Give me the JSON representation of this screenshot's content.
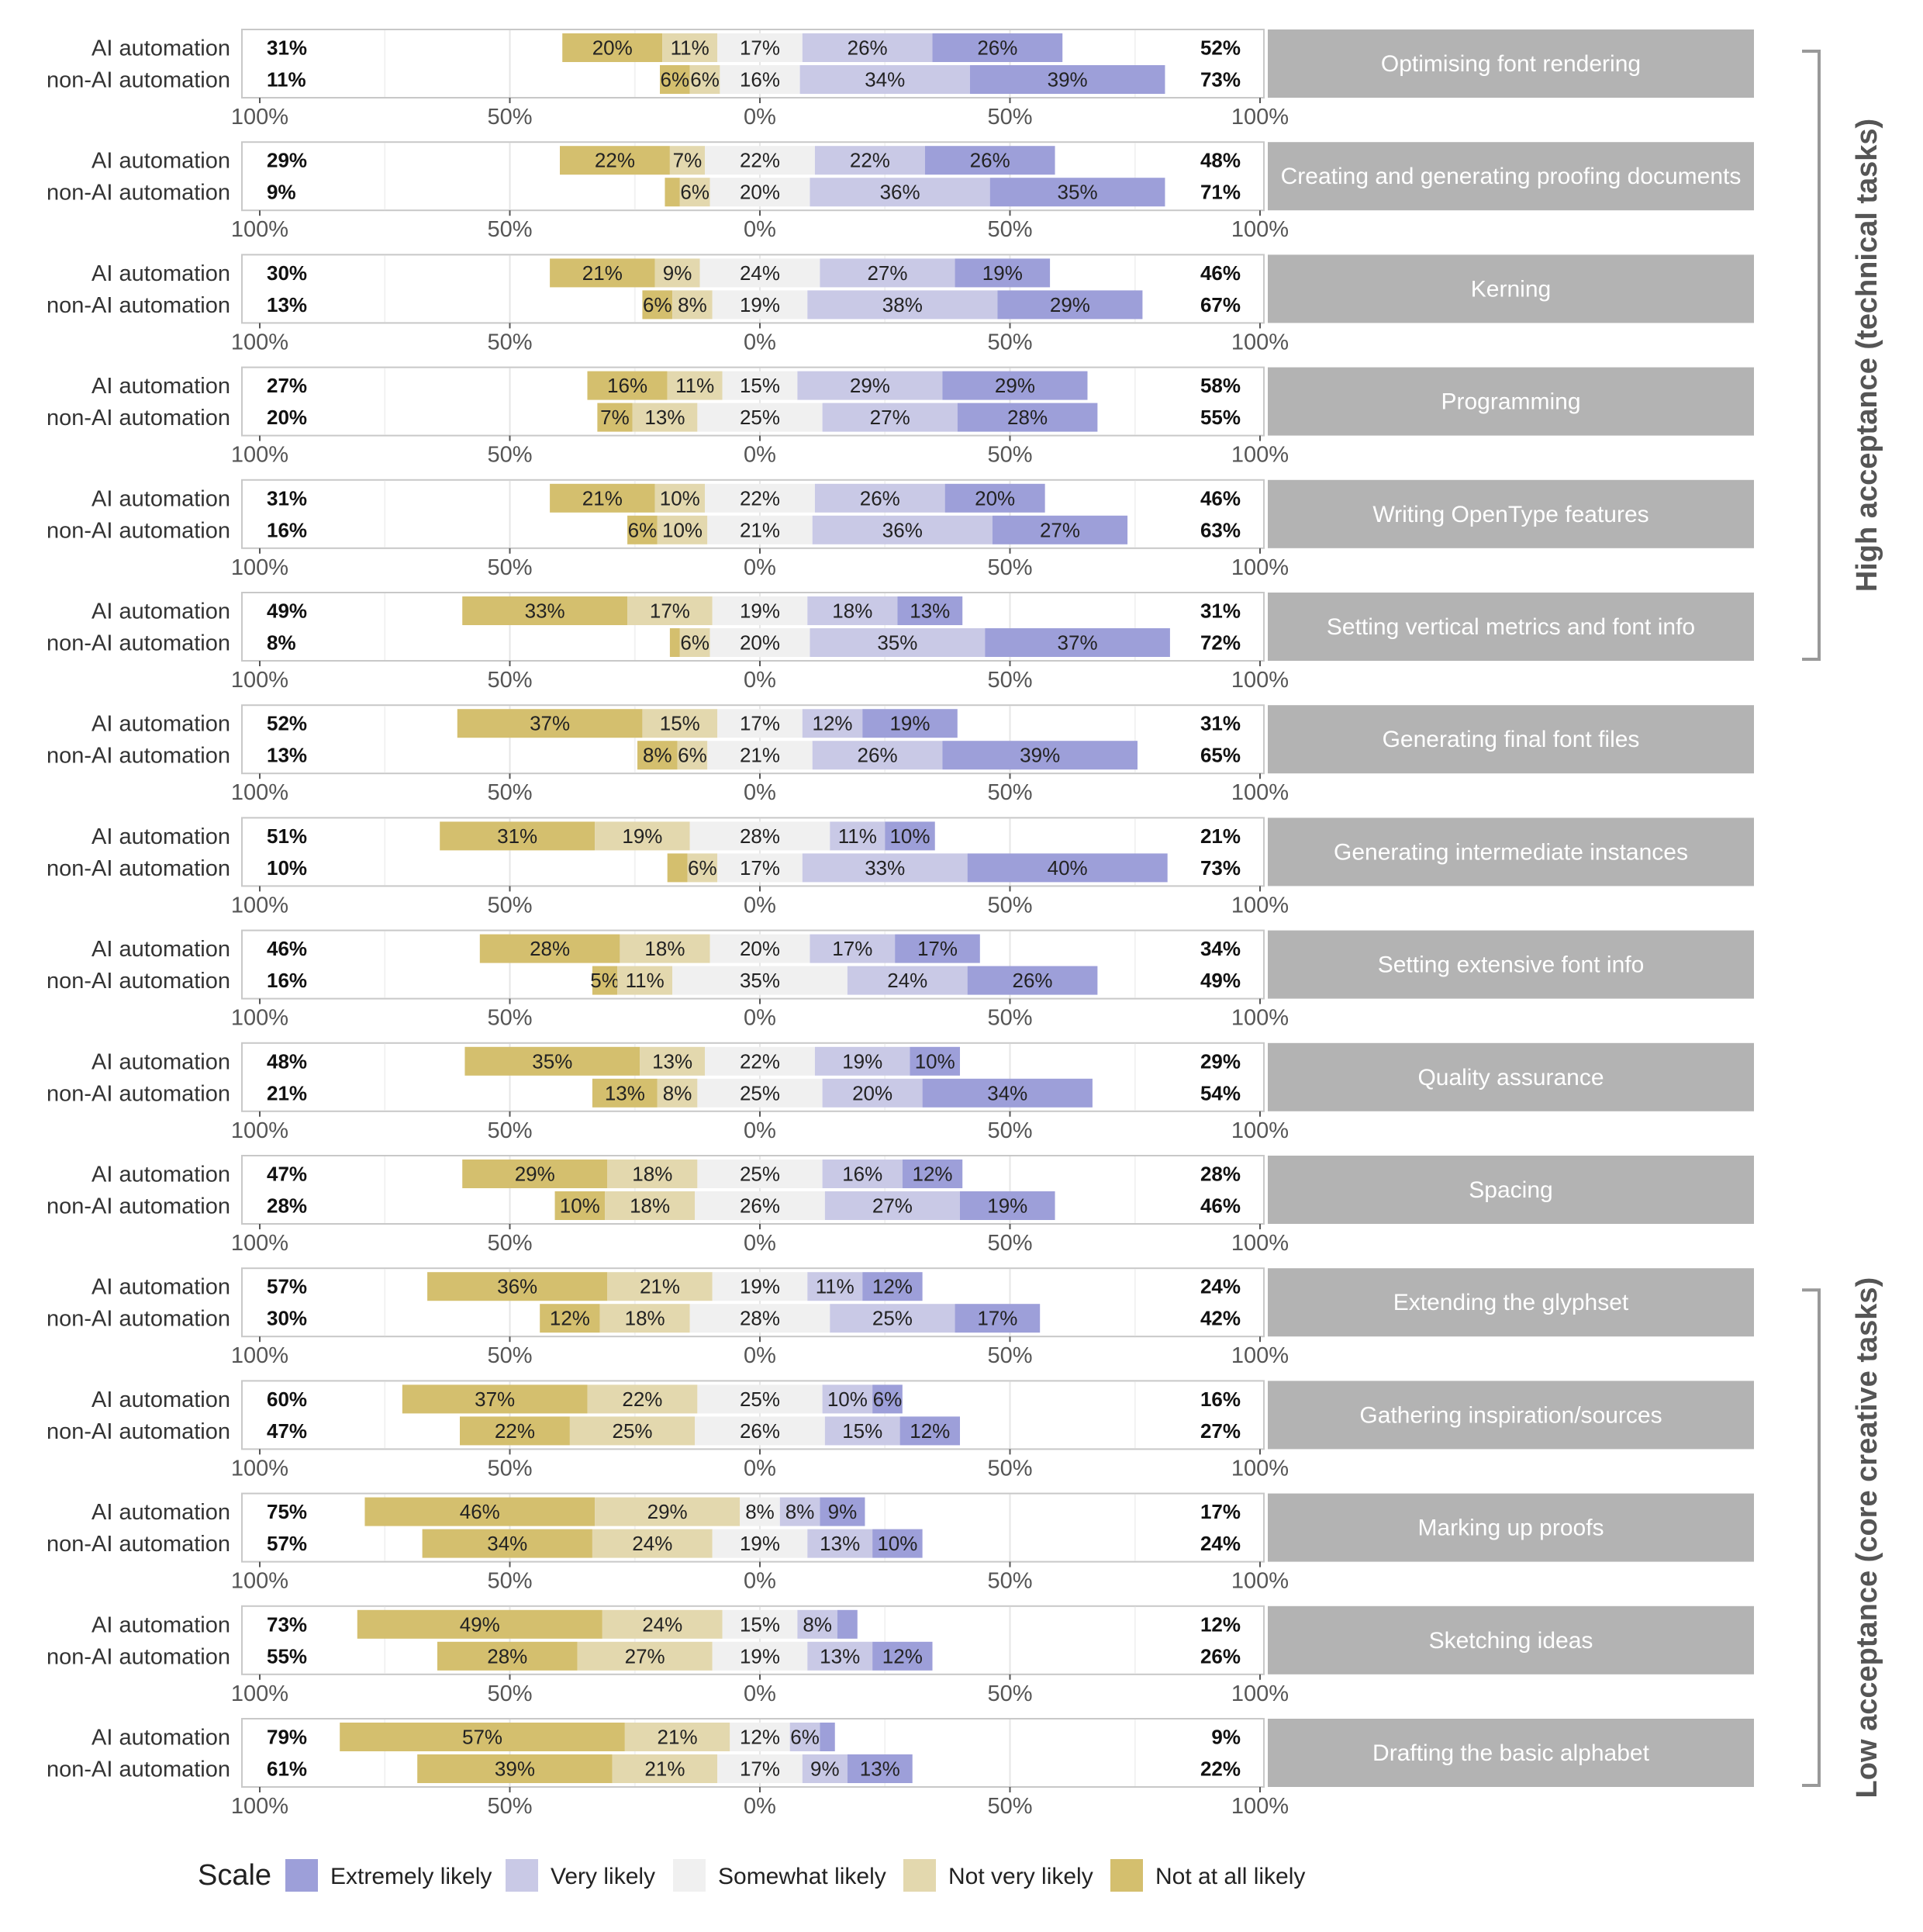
{
  "chart_data": {
    "type": "bar",
    "subtype": "diverging-stacked-likert",
    "row_labels": [
      "AI automation",
      "non-AI automation"
    ],
    "axis_ticks": [
      "100%",
      "50%",
      "0%",
      "50%",
      "100%"
    ],
    "grid": true,
    "legend": {
      "position": "bottom",
      "title": "Scale",
      "items": [
        {
          "label": "Extremely likely",
          "color": "#9d9fd9"
        },
        {
          "label": "Very likely",
          "color": "#c9c9e6"
        },
        {
          "label": "Somewhat likely",
          "color": "#f0f0f0"
        },
        {
          "label": "Not very likely",
          "color": "#e3d8ae"
        },
        {
          "label": "Not at all likely",
          "color": "#d4bf6e"
        }
      ]
    },
    "groups": [
      {
        "label": "High acceptance (technical tasks)",
        "from": 0,
        "to": 5
      },
      {
        "label": "Low acceptance (core creative tasks)",
        "from": 11,
        "to": 15
      }
    ],
    "tasks": [
      {
        "name": "Optimising font rendering",
        "rows": [
          {
            "left": "31%",
            "right": "52%",
            "values": [
              20,
              11,
              17,
              26,
              26
            ]
          },
          {
            "left": "11%",
            "right": "73%",
            "values": [
              6,
              6,
              16,
              34,
              39
            ]
          }
        ]
      },
      {
        "name": "Creating and generating proofing documents",
        "rows": [
          {
            "left": "29%",
            "right": "48%",
            "values": [
              22,
              7,
              22,
              22,
              26
            ]
          },
          {
            "left": "9%",
            "right": "71%",
            "values": [
              3,
              6,
              20,
              36,
              35
            ]
          }
        ]
      },
      {
        "name": "Kerning",
        "rows": [
          {
            "left": "30%",
            "right": "46%",
            "values": [
              21,
              9,
              24,
              27,
              19
            ]
          },
          {
            "left": "13%",
            "right": "67%",
            "values": [
              6,
              8,
              19,
              38,
              29
            ]
          }
        ]
      },
      {
        "name": "Programming",
        "rows": [
          {
            "left": "27%",
            "right": "58%",
            "values": [
              16,
              11,
              15,
              29,
              29
            ]
          },
          {
            "left": "20%",
            "right": "55%",
            "values": [
              7,
              13,
              25,
              27,
              28
            ]
          }
        ]
      },
      {
        "name": "Writing OpenType features",
        "rows": [
          {
            "left": "31%",
            "right": "46%",
            "values": [
              21,
              10,
              22,
              26,
              20
            ]
          },
          {
            "left": "16%",
            "right": "63%",
            "values": [
              6,
              10,
              21,
              36,
              27
            ]
          }
        ]
      },
      {
        "name": "Setting vertical metrics and font info",
        "rows": [
          {
            "left": "49%",
            "right": "31%",
            "values": [
              33,
              17,
              19,
              18,
              13
            ]
          },
          {
            "left": "8%",
            "right": "72%",
            "values": [
              2,
              6,
              20,
              35,
              37
            ]
          }
        ]
      },
      {
        "name": "Generating final font files",
        "rows": [
          {
            "left": "52%",
            "right": "31%",
            "values": [
              37,
              15,
              17,
              12,
              19
            ]
          },
          {
            "left": "13%",
            "right": "65%",
            "values": [
              8,
              6,
              21,
              26,
              39
            ]
          }
        ]
      },
      {
        "name": "Generating intermediate instances",
        "rows": [
          {
            "left": "51%",
            "right": "21%",
            "values": [
              31,
              19,
              28,
              11,
              10
            ]
          },
          {
            "left": "10%",
            "right": "73%",
            "values": [
              4,
              6,
              17,
              33,
              40
            ]
          }
        ]
      },
      {
        "name": "Setting extensive font info",
        "rows": [
          {
            "left": "46%",
            "right": "34%",
            "values": [
              28,
              18,
              20,
              17,
              17
            ]
          },
          {
            "left": "16%",
            "right": "49%",
            "values": [
              5,
              11,
              35,
              24,
              26
            ]
          }
        ]
      },
      {
        "name": "Quality assurance",
        "rows": [
          {
            "left": "48%",
            "right": "29%",
            "values": [
              35,
              13,
              22,
              19,
              10
            ]
          },
          {
            "left": "21%",
            "right": "54%",
            "values": [
              13,
              8,
              25,
              20,
              34
            ]
          }
        ]
      },
      {
        "name": "Spacing",
        "rows": [
          {
            "left": "47%",
            "right": "28%",
            "values": [
              29,
              18,
              25,
              16,
              12
            ]
          },
          {
            "left": "28%",
            "right": "46%",
            "values": [
              10,
              18,
              26,
              27,
              19
            ]
          }
        ]
      },
      {
        "name": "Extending the glyphset",
        "rows": [
          {
            "left": "57%",
            "right": "24%",
            "values": [
              36,
              21,
              19,
              11,
              12
            ]
          },
          {
            "left": "30%",
            "right": "42%",
            "values": [
              12,
              18,
              28,
              25,
              17
            ]
          }
        ]
      },
      {
        "name": "Gathering inspiration/sources",
        "rows": [
          {
            "left": "60%",
            "right": "16%",
            "values": [
              37,
              22,
              25,
              10,
              6
            ]
          },
          {
            "left": "47%",
            "right": "27%",
            "values": [
              22,
              25,
              26,
              15,
              12
            ]
          }
        ]
      },
      {
        "name": "Marking up proofs",
        "rows": [
          {
            "left": "75%",
            "right": "17%",
            "values": [
              46,
              29,
              8,
              8,
              9
            ]
          },
          {
            "left": "57%",
            "right": "24%",
            "values": [
              34,
              24,
              19,
              13,
              10
            ]
          }
        ]
      },
      {
        "name": "Sketching ideas",
        "rows": [
          {
            "left": "73%",
            "right": "12%",
            "values": [
              49,
              24,
              15,
              8,
              4
            ]
          },
          {
            "left": "55%",
            "right": "26%",
            "values": [
              28,
              27,
              19,
              13,
              12
            ]
          }
        ]
      },
      {
        "name": "Drafting the basic alphabet",
        "rows": [
          {
            "left": "79%",
            "right": "9%",
            "values": [
              57,
              21,
              12,
              6,
              3
            ]
          },
          {
            "left": "61%",
            "right": "22%",
            "values": [
              39,
              21,
              17,
              9,
              13
            ]
          }
        ]
      }
    ]
  }
}
